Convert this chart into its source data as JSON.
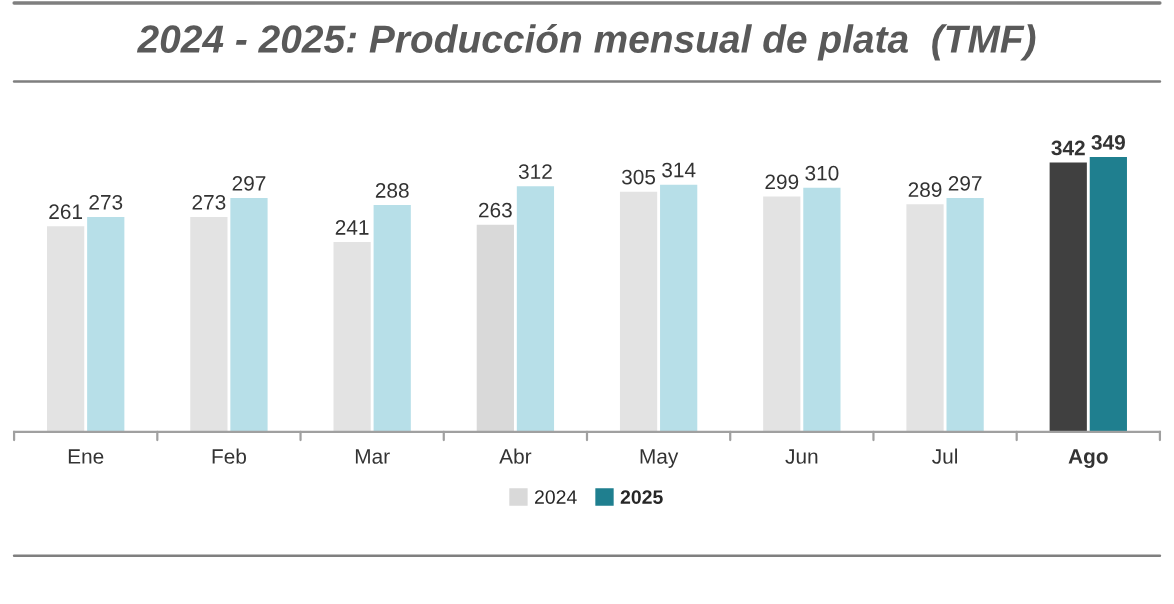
{
  "chart_data": {
    "type": "bar",
    "title": "2024 - 2025: Producción mensual de plata  (TMF)",
    "categories": [
      "Ene",
      "Feb",
      "Mar",
      "Abr",
      "May",
      "Jun",
      "Jul",
      "Ago"
    ],
    "series": [
      {
        "name": "2024",
        "color": "#d9d9d9",
        "colors": [
          "#e3e3e3",
          "#e3e3e3",
          "#e3e3e3",
          "#d9d9d9",
          "#e3e3e3",
          "#e3e3e3",
          "#e3e3e3",
          "#404040"
        ],
        "values": [
          261,
          273,
          241,
          263,
          305,
          299,
          289,
          342
        ]
      },
      {
        "name": "2025",
        "color": "#1f7f8f",
        "colors": [
          "#b7dfe8",
          "#b7dfe8",
          "#b7dfe8",
          "#b7dfe8",
          "#b7dfe8",
          "#b7dfe8",
          "#b7dfe8",
          "#1f7f8f"
        ],
        "values": [
          273,
          297,
          288,
          312,
          314,
          310,
          297,
          349
        ]
      }
    ],
    "data_labels": true,
    "legend": "bottom",
    "grid": false
  }
}
